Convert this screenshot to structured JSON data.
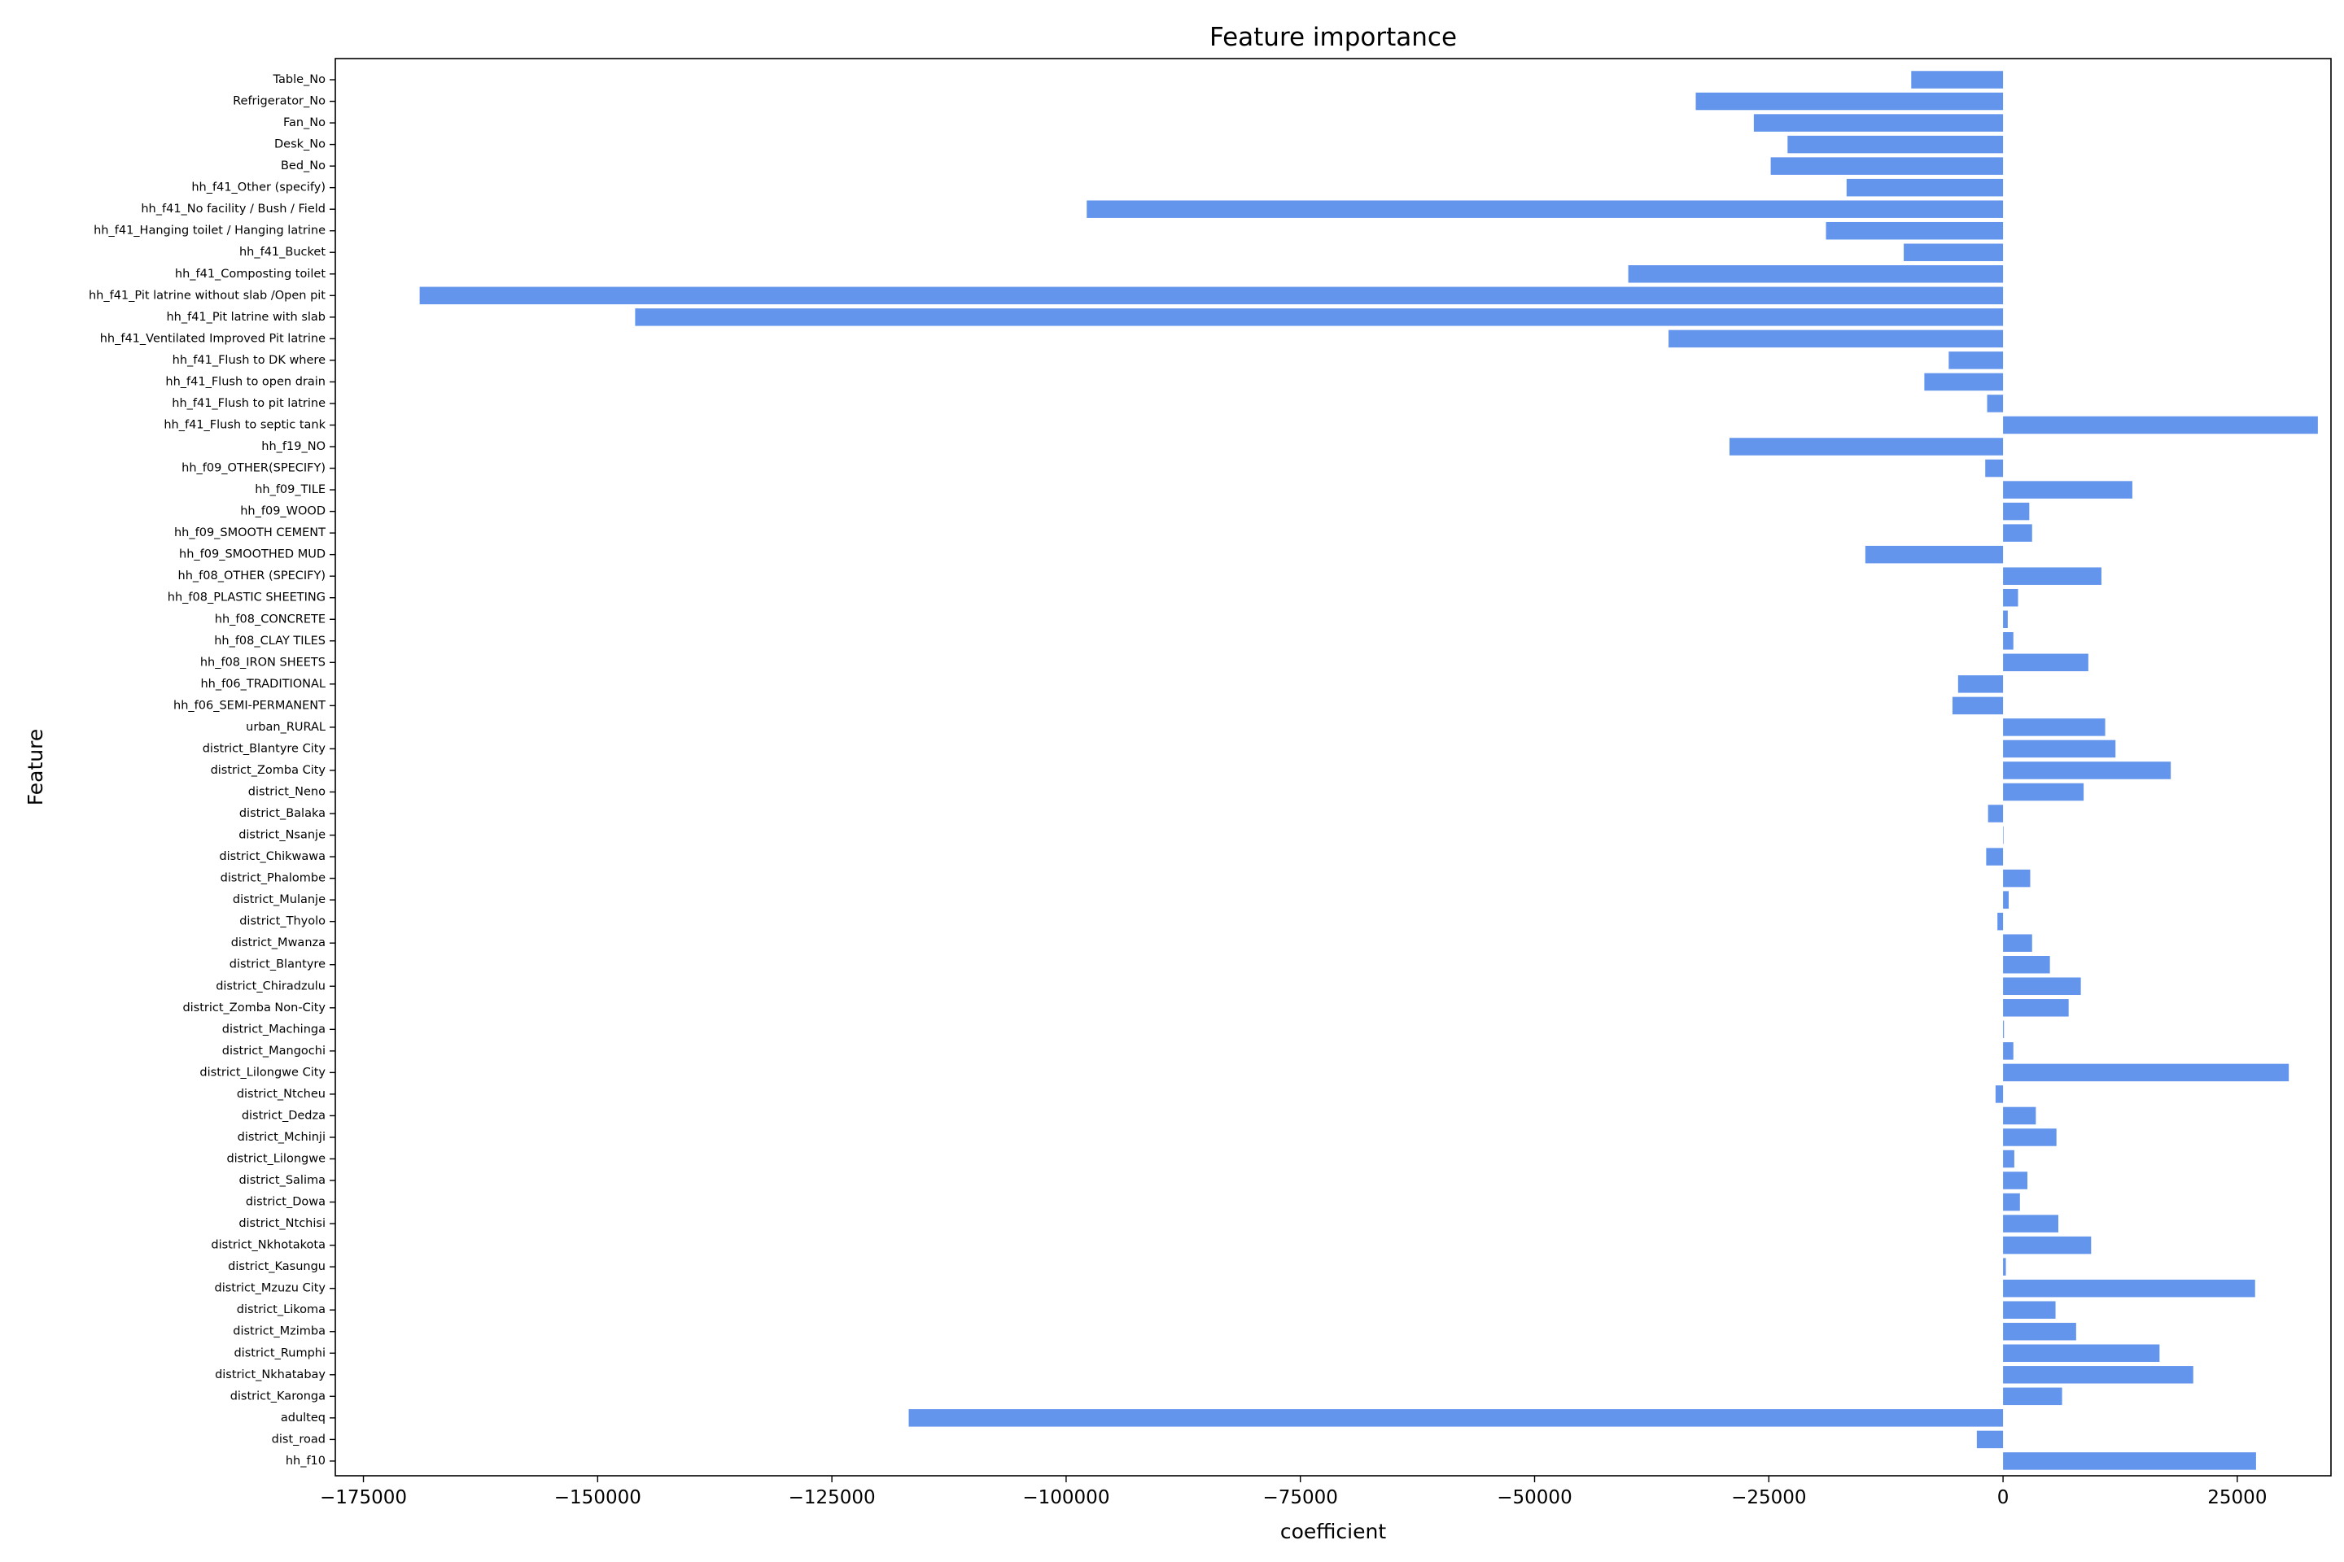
{
  "chart_data": {
    "type": "bar",
    "orientation": "horizontal",
    "title": "Feature importance",
    "xlabel": "coefficient",
    "ylabel": "Feature",
    "xlim": [
      -178000,
      35000
    ],
    "xticks": [
      -175000,
      -150000,
      -125000,
      -100000,
      -75000,
      -50000,
      -25000,
      0,
      25000
    ],
    "xtick_labels": [
      "−175000",
      "−150000",
      "−125000",
      "−100000",
      "−75000",
      "−50000",
      "−25000",
      "0",
      "25000"
    ],
    "grid": false,
    "bar_color": "#6495ED",
    "categories": [
      "Table_No",
      "Refrigerator_No",
      "Fan_No",
      "Desk_No",
      "Bed_No",
      "hh_f41_Other (specify)",
      "hh_f41_No facility / Bush / Field",
      "hh_f41_Hanging toilet / Hanging latrine",
      "hh_f41_Bucket",
      "hh_f41_Composting toilet",
      "hh_f41_Pit latrine without slab /Open pit",
      "hh_f41_Pit latrine with slab",
      "hh_f41_Ventilated Improved Pit latrine",
      "hh_f41_Flush to DK where",
      "hh_f41_Flush to open drain",
      "hh_f41_Flush to pit latrine",
      "hh_f41_Flush to septic tank",
      "hh_f19_NO",
      "hh_f09_OTHER(SPECIFY)",
      "hh_f09_TILE",
      "hh_f09_WOOD",
      "hh_f09_SMOOTH CEMENT",
      "hh_f09_SMOOTHED MUD",
      "hh_f08_OTHER (SPECIFY)",
      "hh_f08_PLASTIC SHEETING",
      "hh_f08_CONCRETE",
      "hh_f08_CLAY TILES",
      "hh_f08_IRON SHEETS",
      "hh_f06_TRADITIONAL",
      "hh_f06_SEMI-PERMANENT",
      "urban_RURAL",
      "district_Blantyre City",
      "district_Zomba City",
      "district_Neno",
      "district_Balaka",
      "district_Nsanje",
      "district_Chikwawa",
      "district_Phalombe",
      "district_Mulanje",
      "district_Thyolo",
      "district_Mwanza",
      "district_Blantyre",
      "district_Chiradzulu",
      "district_Zomba Non-City",
      "district_Machinga",
      "district_Mangochi",
      "district_Lilongwe City",
      "district_Ntcheu",
      "district_Dedza",
      "district_Mchinji",
      "district_Lilongwe",
      "district_Salima",
      "district_Dowa",
      "district_Ntchisi",
      "district_Nkhotakota",
      "district_Kasungu",
      "district_Mzuzu City",
      "district_Likoma",
      "district_Mzimba",
      "district_Rumphi",
      "district_Nkhatabay",
      "district_Karonga",
      "adulteq",
      "dist_road",
      "hh_f10"
    ],
    "values": [
      -9800,
      -32800,
      -26600,
      -23000,
      -24800,
      -16700,
      -97800,
      -18900,
      -10600,
      -40000,
      -169000,
      -146000,
      -35700,
      -5800,
      -8400,
      -1700,
      33600,
      -29200,
      -1900,
      13800,
      2800,
      3100,
      -14700,
      10500,
      1600,
      500,
      1100,
      9100,
      -4800,
      -5400,
      10900,
      12000,
      17900,
      8600,
      -1600,
      0,
      -1800,
      2900,
      600,
      -600,
      3100,
      5000,
      8300,
      7000,
      100,
      1100,
      30500,
      -800,
      3500,
      5700,
      1200,
      2600,
      1800,
      5900,
      9400,
      300,
      26900,
      5600,
      7800,
      16700,
      20300,
      6300,
      -116800,
      -2800,
      27000
    ]
  }
}
